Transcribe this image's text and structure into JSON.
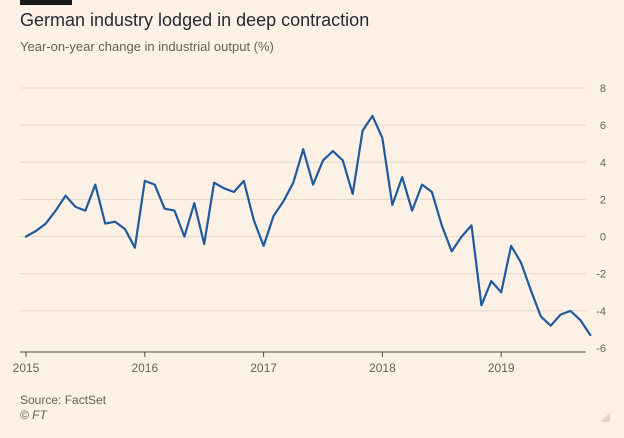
{
  "header": {
    "title": "German industry lodged in deep contraction",
    "subtitle": "Year-on-year change in industrial output (%)"
  },
  "footer": {
    "source": "Source: FactSet",
    "copyright": "© FT"
  },
  "colors": {
    "background": "#fdf1e6",
    "line": "#1f5a9e",
    "grid": "#e3d6c9",
    "text": "#66605c"
  },
  "chart_data": {
    "type": "line",
    "title": "German industry lodged in deep contraction",
    "subtitle": "Year-on-year change in industrial output (%)",
    "xlabel": "",
    "ylabel": "",
    "xlim": [
      "2015-01",
      "2019-10"
    ],
    "ylim": [
      -6,
      8
    ],
    "yticks": [
      8,
      6,
      4,
      2,
      0,
      -2,
      -4,
      -6
    ],
    "xticks": [
      "2015",
      "2016",
      "2017",
      "2018",
      "2019"
    ],
    "grid": true,
    "legend": "none",
    "series": [
      {
        "x": [
          "2015-01",
          "2015-02",
          "2015-03",
          "2015-04",
          "2015-05",
          "2015-06",
          "2015-07",
          "2015-08",
          "2015-09",
          "2015-10",
          "2015-11",
          "2015-12",
          "2016-01",
          "2016-02",
          "2016-03",
          "2016-04",
          "2016-05",
          "2016-06",
          "2016-07",
          "2016-08",
          "2016-09",
          "2016-10",
          "2016-11",
          "2016-12",
          "2017-01",
          "2017-02",
          "2017-03",
          "2017-04",
          "2017-05",
          "2017-06",
          "2017-07",
          "2017-08",
          "2017-09",
          "2017-10",
          "2017-11",
          "2017-12",
          "2018-01",
          "2018-02",
          "2018-03",
          "2018-04",
          "2018-05",
          "2018-06",
          "2018-07",
          "2018-08",
          "2018-09",
          "2018-10",
          "2018-11",
          "2018-12",
          "2019-01",
          "2019-02",
          "2019-03",
          "2019-04",
          "2019-05",
          "2019-06",
          "2019-07",
          "2019-08",
          "2019-09",
          "2019-10"
        ],
        "values": [
          0.0,
          0.3,
          0.7,
          1.4,
          2.2,
          1.6,
          1.4,
          2.8,
          0.7,
          0.8,
          0.4,
          -0.6,
          3.0,
          2.8,
          1.5,
          1.4,
          0.0,
          1.8,
          -0.4,
          2.9,
          2.6,
          2.4,
          3.0,
          0.9,
          -0.5,
          1.1,
          1.9,
          2.9,
          4.7,
          2.8,
          4.1,
          4.6,
          4.1,
          2.3,
          5.7,
          6.5,
          5.3,
          1.7,
          3.2,
          1.4,
          2.8,
          2.4,
          0.6,
          -0.8,
          0.0,
          0.6,
          -3.7,
          -2.4,
          -3.0,
          -0.5,
          -1.4,
          -2.9,
          -4.3,
          -4.8,
          -4.2,
          -4.0,
          -4.5,
          -5.3
        ]
      }
    ]
  }
}
